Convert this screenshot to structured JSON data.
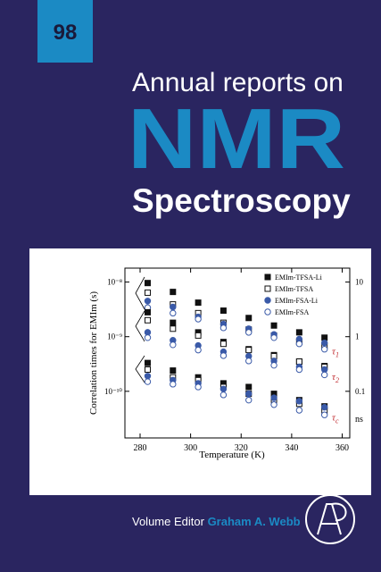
{
  "cover": {
    "volume": "98",
    "series_title": "Annual reports on",
    "title": "NMR",
    "subtitle": "Spectroscopy",
    "editor_label": "Volume Editor",
    "editor": "Graham A. Webb"
  },
  "chart_data": {
    "type": "scatter",
    "x_label": "Temperature (K)",
    "y_label": "Correlation times for EMIm (s)",
    "y2_label": "ns",
    "x": [
      283,
      293,
      303,
      313,
      323,
      333,
      343,
      353
    ],
    "xlim": [
      274,
      363
    ],
    "xticks": [
      280,
      300,
      320,
      340,
      360
    ],
    "ylim": [
      1.8e-08,
      1.4e-11
    ],
    "yscale": "log",
    "yticks": [
      {
        "value": 1e-08,
        "label": "10⁻⁸"
      },
      {
        "value": 1e-09,
        "label": "10⁻⁹"
      },
      {
        "value": 1e-10,
        "label": "10⁻¹⁰"
      }
    ],
    "y2lim": [
      18,
      0.014
    ],
    "y2ticks": [
      10,
      1,
      0.1
    ],
    "legend": "upper right",
    "series": [
      {
        "name": "EMIm-TFSA-Li",
        "marker": "square",
        "filled": true,
        "color": "#111111"
      },
      {
        "name": "EMIm-TFSA",
        "marker": "square",
        "filled": false,
        "color": "#111111"
      },
      {
        "name": "EMIm-FSA-Li",
        "marker": "circle",
        "filled": true,
        "color": "#3a5aa8"
      },
      {
        "name": "EMIm-FSA",
        "marker": "circle",
        "filled": false,
        "color": "#3a5aa8"
      }
    ],
    "groups": [
      {
        "symbol": "τ",
        "subscript": "1",
        "color": "#c0282d",
        "values": [
          [
            9.6e-09,
            6.6e-09,
            4.2e-09,
            3e-09,
            2.2e-09,
            1.6e-09,
            1.2e-09,
            9.6e-10
          ],
          [
            6.4e-09,
            3.9e-09,
            2.7e-09,
            1.8e-09,
            1.35e-09,
            1.05e-09,
            8e-10,
            6.9e-10
          ],
          [
            4.5e-09,
            3.5e-09,
            2.3e-09,
            1.7e-09,
            1.4e-09,
            1.1e-09,
            9e-10,
            7.7e-10
          ],
          [
            3.4e-09,
            2.7e-09,
            2.1e-09,
            1.45e-09,
            1.2e-09,
            9.6e-10,
            7.4e-10,
            5.9e-10
          ]
        ]
      },
      {
        "symbol": "τ",
        "subscript": "2",
        "color": "#c0282d",
        "values": [
          [
            2.8e-09,
            1.8e-09,
            1.2e-09,
            8e-10,
            5.9e-10,
            4.6e-10,
            3.5e-10,
            2.9e-10
          ],
          [
            2e-09,
            1.4e-09,
            1.05e-09,
            7.4e-10,
            5.7e-10,
            4.4e-10,
            3.5e-10,
            2.8e-10
          ],
          [
            1.2e-09,
            8.6e-10,
            6.9e-10,
            5.3e-10,
            4.4e-10,
            3.6e-10,
            2.8e-10,
            2.5e-10
          ],
          [
            9.6e-10,
            7.1e-10,
            5.7e-10,
            4.5e-10,
            3.6e-10,
            3e-10,
            2.5e-10,
            2e-10
          ]
        ]
      },
      {
        "symbol": "τ",
        "subscript": "c",
        "color": "#c0282d",
        "values": [
          [
            3.3e-10,
            2.4e-10,
            1.8e-10,
            1.4e-10,
            1.2e-10,
            9e-11,
            6.9e-11,
            5.3e-11
          ],
          [
            2.5e-10,
            1.8e-10,
            1.6e-10,
            1.2e-10,
            9e-11,
            7e-11,
            5.9e-11,
            4.5e-11
          ],
          [
            1.9e-10,
            1.6e-10,
            1.4e-10,
            1.1e-10,
            9e-11,
            7.6e-11,
            6.6e-11,
            5.1e-11
          ],
          [
            1.5e-10,
            1.35e-10,
            1.2e-10,
            8.6e-11,
            6.9e-11,
            5.7e-11,
            4.5e-11,
            3.7e-11
          ]
        ]
      }
    ]
  }
}
